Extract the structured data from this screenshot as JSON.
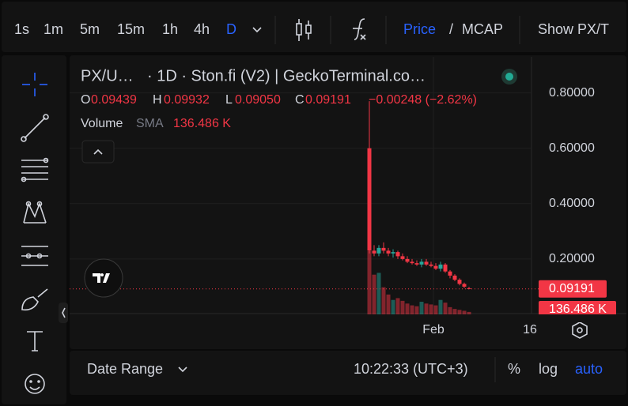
{
  "toolbar": {
    "intervals": [
      "1s",
      "1m",
      "5m",
      "15m",
      "1h",
      "4h",
      "D"
    ],
    "price": "Price",
    "separator": "/",
    "mcap": "MCAP",
    "show": "Show PX/T"
  },
  "legend": {
    "symbol": "PX/U…",
    "details": "· 1D · Ston.fi (V2) | GeckoTerminal.co…",
    "ohlc": [
      {
        "key": "O",
        "value": "0.09439"
      },
      {
        "key": "H",
        "value": "0.09932"
      },
      {
        "key": "L",
        "value": "0.09050"
      },
      {
        "key": "C",
        "value": "0.09191"
      }
    ],
    "change": "−0.00248 (−2.62%)",
    "volume_label": "Volume",
    "volume_sma": "SMA",
    "volume_value": "136.486 K"
  },
  "chart_data": {
    "type": "candlestick",
    "open": [
      0.6,
      0.23,
      0.22,
      0.24,
      0.23,
      0.22,
      0.225,
      0.21,
      0.2,
      0.19,
      0.185,
      0.18,
      0.19,
      0.18,
      0.175,
      0.165,
      0.18,
      0.155,
      0.14,
      0.125,
      0.11,
      0.09439
    ],
    "high": [
      0.77,
      0.25,
      0.25,
      0.26,
      0.24,
      0.235,
      0.23,
      0.22,
      0.21,
      0.2,
      0.195,
      0.2,
      0.2,
      0.19,
      0.185,
      0.19,
      0.185,
      0.16,
      0.145,
      0.13,
      0.115,
      0.09932
    ],
    "low": [
      0.22,
      0.21,
      0.21,
      0.22,
      0.21,
      0.205,
      0.2,
      0.195,
      0.185,
      0.18,
      0.175,
      0.17,
      0.175,
      0.17,
      0.16,
      0.155,
      0.15,
      0.13,
      0.12,
      0.105,
      0.095,
      0.0905
    ],
    "close": [
      0.23,
      0.22,
      0.24,
      0.23,
      0.22,
      0.225,
      0.21,
      0.2,
      0.19,
      0.185,
      0.18,
      0.19,
      0.18,
      0.175,
      0.165,
      0.18,
      0.155,
      0.14,
      0.125,
      0.11,
      0.1,
      0.09191
    ],
    "volume": [
      3500,
      2200,
      2300,
      1500,
      1100,
      800,
      900,
      750,
      600,
      500,
      450,
      700,
      600,
      550,
      500,
      800,
      650,
      400,
      300,
      250,
      200,
      136.486
    ],
    "up_color": "#26a69a",
    "down_color": "#f23645",
    "ylim": [
      0,
      0.93
    ],
    "yticks": [
      {
        "value": 0.2,
        "label": "0.20000"
      },
      {
        "value": 0.4,
        "label": "0.40000"
      },
      {
        "value": 0.6,
        "label": "0.60000"
      },
      {
        "value": 0.8,
        "label": "0.80000"
      }
    ],
    "x_labels": [
      "Feb",
      "16"
    ],
    "grid": true
  },
  "footer": {
    "date_range": "Date Range",
    "time": "10:22:33 (UTC+3)",
    "percent": "%",
    "log": "log",
    "auto": "auto"
  }
}
